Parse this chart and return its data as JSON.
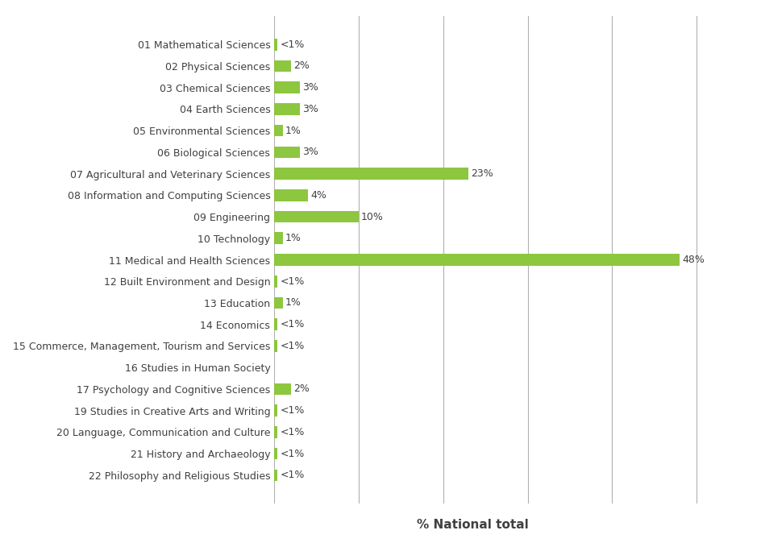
{
  "categories": [
    "01 Mathematical Sciences",
    "02 Physical Sciences",
    "03 Chemical Sciences",
    "04 Earth Sciences",
    "05 Environmental Sciences",
    "06 Biological Sciences",
    "07 Agricultural and Veterinary Sciences",
    "08 Information and Computing Sciences",
    "09 Engineering",
    "10 Technology",
    "11 Medical and Health Sciences",
    "12 Built Environment and Design",
    "13 Education",
    "14 Economics",
    "15 Commerce, Management, Tourism and Services",
    "16 Studies in Human Society",
    "17 Psychology and Cognitive Sciences",
    "19 Studies in Creative Arts and Writing",
    "20 Language, Communication and Culture",
    "21 History and Archaeology",
    "22 Philosophy and Religious Studies"
  ],
  "values": [
    0.4,
    2,
    3,
    3,
    1,
    3,
    23,
    4,
    10,
    1,
    48,
    0.4,
    1,
    0.4,
    0.4,
    0,
    2,
    0.4,
    0.4,
    0.4,
    0.4
  ],
  "labels": [
    "<1%",
    "2%",
    "3%",
    "3%",
    "1%",
    "3%",
    "23%",
    "4%",
    "10%",
    "1%",
    "48%",
    "<1%",
    "1%",
    "<1%",
    "<1%",
    "",
    "2%",
    "<1%",
    "<1%",
    "<1%",
    "<1%"
  ],
  "bar_color": "#8dc63f",
  "xlabel": "% National total",
  "xlim": [
    0,
    55
  ],
  "background_color": "#ffffff",
  "grid_color": "#b0b0b0",
  "text_color": "#404040",
  "label_fontsize": 9,
  "xlabel_fontsize": 11,
  "tick_label_fontsize": 9,
  "grid_positions": [
    0,
    10,
    20,
    30,
    40,
    50
  ]
}
